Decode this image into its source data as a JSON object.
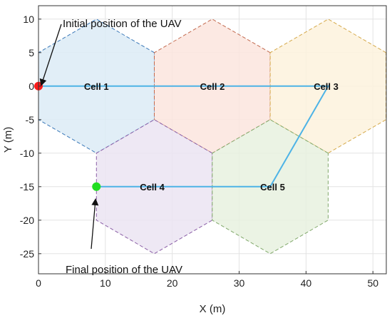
{
  "chart_data": {
    "type": "scatter",
    "xlabel": "X (m)",
    "ylabel": "Y (m)",
    "xlim": [
      0,
      52
    ],
    "ylim": [
      -28,
      12
    ],
    "xticks": [
      0,
      10,
      20,
      30,
      40,
      50
    ],
    "yticks": [
      10,
      5,
      0,
      -5,
      -10,
      -15,
      -20,
      -25
    ],
    "grid": true,
    "cells": [
      {
        "name": "Cell 1",
        "center": [
          8.66,
          0
        ],
        "label_at": [
          8.66,
          0
        ],
        "fill": "#dcebf6",
        "stroke": "#3a78b8"
      },
      {
        "name": "Cell 2",
        "center": [
          25.98,
          0
        ],
        "label_at": [
          26.0,
          0
        ],
        "fill": "#fbe5de",
        "stroke": "#c26a4f"
      },
      {
        "name": "Cell 3",
        "center": [
          43.3,
          0
        ],
        "label_at": [
          43.0,
          0
        ],
        "fill": "#fdf2dd",
        "stroke": "#d5a94a"
      },
      {
        "name": "Cell 4",
        "center": [
          17.32,
          -15
        ],
        "label_at": [
          17.0,
          -15
        ],
        "fill": "#ebe4f2",
        "stroke": "#8a5ea6"
      },
      {
        "name": "Cell 5",
        "center": [
          34.64,
          -15
        ],
        "label_at": [
          35.0,
          -15
        ],
        "fill": "#e8f1df",
        "stroke": "#80a86a"
      }
    ],
    "cell_radius": 10,
    "path": {
      "color": "#4db3e6",
      "points": [
        [
          0,
          0
        ],
        [
          43.3,
          0
        ],
        [
          34.64,
          -15
        ],
        [
          8.66,
          -15
        ]
      ]
    },
    "markers": [
      {
        "name": "start",
        "x": 0,
        "y": 0,
        "color": "#ff1a1a"
      },
      {
        "name": "end",
        "x": 8.66,
        "y": -15,
        "color": "#22dd22"
      }
    ]
  },
  "annotations": {
    "initial": "Initial position of the UAV",
    "final": "Final position of the UAV"
  }
}
